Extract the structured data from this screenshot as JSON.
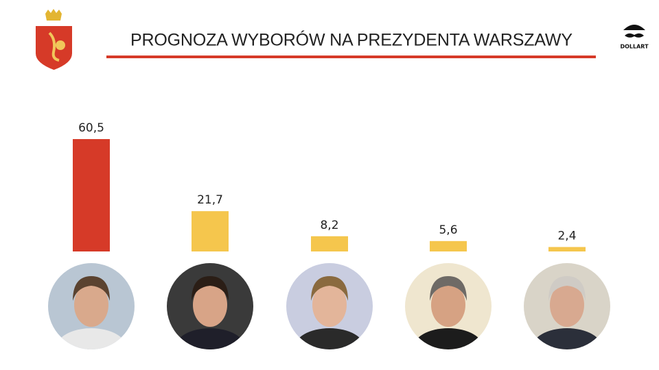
{
  "chart_data": {
    "type": "bar",
    "title": "PROGNOZA WYBORÓW NA PREZYDENTA WARSZAWY",
    "values": [
      60.5,
      21.7,
      8.2,
      5.6,
      2.4
    ],
    "value_labels": [
      "60,5",
      "21,7",
      "8,2",
      "5,6",
      "2,4"
    ],
    "colors": [
      "#d63a28",
      "#f5c64d",
      "#f5c64d",
      "#f5c64d",
      "#f5c64d"
    ],
    "logo_text": "DOLLART"
  }
}
